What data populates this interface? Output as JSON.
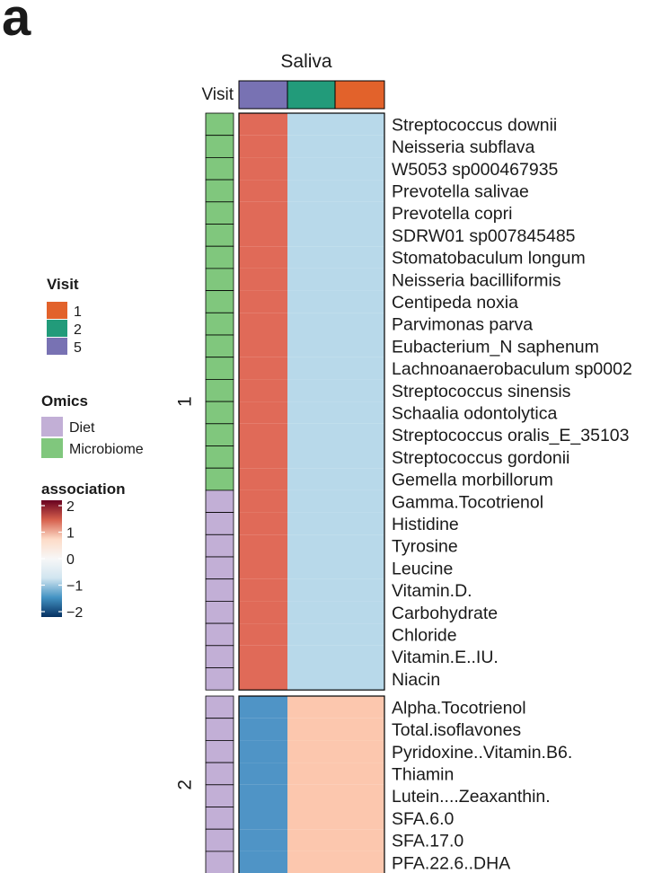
{
  "panel_label": "a",
  "chart_data": {
    "type": "heatmap",
    "title": "Saliva",
    "column_annotation_label": "Visit",
    "columns": [
      "5",
      "2",
      "1"
    ],
    "row_groups": [
      {
        "label": "1",
        "rows": [
          {
            "name": "Streptococcus downii",
            "omics": "Microbiome",
            "values": [
              1,
              -1,
              -1
            ]
          },
          {
            "name": "Neisseria subflava",
            "omics": "Microbiome",
            "values": [
              1,
              -1,
              -1
            ]
          },
          {
            "name": "W5053 sp000467935",
            "omics": "Microbiome",
            "values": [
              1,
              -1,
              -1
            ]
          },
          {
            "name": "Prevotella salivae",
            "omics": "Microbiome",
            "values": [
              1,
              -1,
              -1
            ]
          },
          {
            "name": "Prevotella copri",
            "omics": "Microbiome",
            "values": [
              1,
              -1,
              -1
            ]
          },
          {
            "name": "SDRW01 sp007845485",
            "omics": "Microbiome",
            "values": [
              1,
              -1,
              -1
            ]
          },
          {
            "name": "Stomatobaculum longum",
            "omics": "Microbiome",
            "values": [
              1,
              -1,
              -1
            ]
          },
          {
            "name": "Neisseria bacilliformis",
            "omics": "Microbiome",
            "values": [
              1,
              -1,
              -1
            ]
          },
          {
            "name": "Centipeda noxia",
            "omics": "Microbiome",
            "values": [
              1,
              -1,
              -1
            ]
          },
          {
            "name": "Parvimonas parva",
            "omics": "Microbiome",
            "values": [
              1,
              -1,
              -1
            ]
          },
          {
            "name": "Eubacterium_N saphenum",
            "omics": "Microbiome",
            "values": [
              1,
              -1,
              -1
            ]
          },
          {
            "name": "Lachnoanaerobaculum sp0002",
            "omics": "Microbiome",
            "values": [
              1,
              -1,
              -1
            ]
          },
          {
            "name": "Streptococcus sinensis",
            "omics": "Microbiome",
            "values": [
              1,
              -1,
              -1
            ]
          },
          {
            "name": "Schaalia odontolytica",
            "omics": "Microbiome",
            "values": [
              1,
              -1,
              -1
            ]
          },
          {
            "name": "Streptococcus oralis_E_35103",
            "omics": "Microbiome",
            "values": [
              1,
              -1,
              -1
            ]
          },
          {
            "name": "Streptococcus gordonii",
            "omics": "Microbiome",
            "values": [
              1,
              -1,
              -1
            ]
          },
          {
            "name": "Gemella morbillorum",
            "omics": "Microbiome",
            "values": [
              1,
              -1,
              -1
            ]
          },
          {
            "name": "Gamma.Tocotrienol",
            "omics": "Diet",
            "values": [
              1,
              -1,
              -1
            ]
          },
          {
            "name": "Histidine",
            "omics": "Diet",
            "values": [
              1,
              -1,
              -1
            ]
          },
          {
            "name": "Tyrosine",
            "omics": "Diet",
            "values": [
              1,
              -1,
              -1
            ]
          },
          {
            "name": "Leucine",
            "omics": "Diet",
            "values": [
              1,
              -1,
              -1
            ]
          },
          {
            "name": "Vitamin.D.",
            "omics": "Diet",
            "values": [
              1,
              -1,
              -1
            ]
          },
          {
            "name": "Carbohydrate",
            "omics": "Diet",
            "values": [
              1,
              -1,
              -1
            ]
          },
          {
            "name": "Chloride",
            "omics": "Diet",
            "values": [
              1,
              -1,
              -1
            ]
          },
          {
            "name": "Vitamin.E..IU.",
            "omics": "Diet",
            "values": [
              1,
              -1,
              -1
            ]
          },
          {
            "name": "Niacin",
            "omics": "Diet",
            "values": [
              1,
              -1,
              -1
            ]
          }
        ]
      },
      {
        "label": "2",
        "rows": [
          {
            "name": "Alpha.Tocotrienol",
            "omics": "Diet",
            "values": [
              -1,
              1,
              1
            ]
          },
          {
            "name": "Total.isoflavones",
            "omics": "Diet",
            "values": [
              -1,
              1,
              1
            ]
          },
          {
            "name": "Pyridoxine..Vitamin.B6.",
            "omics": "Diet",
            "values": [
              -1,
              1,
              1
            ]
          },
          {
            "name": "Thiamin",
            "omics": "Diet",
            "values": [
              -1,
              1,
              1
            ]
          },
          {
            "name": "Lutein....Zeaxanthin.",
            "omics": "Diet",
            "values": [
              -1,
              1,
              1
            ]
          },
          {
            "name": "SFA.6.0",
            "omics": "Diet",
            "values": [
              -1,
              1,
              1
            ]
          },
          {
            "name": "SFA.17.0",
            "omics": "Diet",
            "values": [
              -1,
              1,
              1
            ]
          },
          {
            "name": "PFA.22.6..DHA",
            "omics": "Diet",
            "values": [
              -1,
              1,
              1
            ]
          }
        ]
      }
    ],
    "legends": {
      "visit": {
        "title": "Visit",
        "items": [
          {
            "label": "1",
            "color": "#e2622b"
          },
          {
            "label": "2",
            "color": "#229b7a"
          },
          {
            "label": "5",
            "color": "#7872b3"
          }
        ]
      },
      "omics": {
        "title": "Omics",
        "items": [
          {
            "label": "Diet",
            "color": "#c2afd6"
          },
          {
            "label": "Microbiome",
            "color": "#80c77d"
          }
        ]
      },
      "association": {
        "title": "association",
        "ticks": [
          "2",
          "1",
          "0",
          "−1",
          "−2"
        ],
        "colorscale": [
          "#67001f",
          "#d6604d",
          "#fddbc7",
          "#f7f7f7",
          "#d1e5f0",
          "#4393c3",
          "#053061"
        ]
      }
    },
    "colors": {
      "visit": {
        "5": "#7872b3",
        "2": "#229b7a",
        "1": "#e2622b"
      },
      "omics": {
        "Diet": "#c2afd6",
        "Microbiome": "#80c77d"
      },
      "association_1": "#e06a58",
      "association_pos2": "#fcc7ae",
      "association_neg2": "#b8d9ea",
      "association_neg1": "#4f94c6"
    }
  }
}
